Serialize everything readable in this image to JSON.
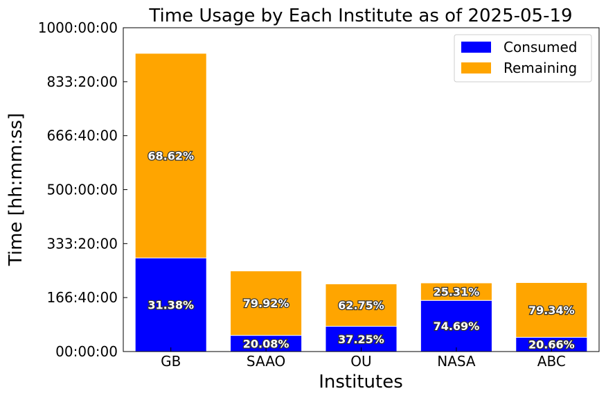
{
  "chart_data": {
    "type": "bar",
    "stacked": true,
    "title": "Time Usage by Each Institute as of 2025-05-19",
    "xlabel": "Institutes",
    "ylabel": "Time [hh:mm:ss]",
    "ylim": [
      0,
      1000
    ],
    "y_unit": "hours",
    "yticks": [
      0,
      166.6667,
      333.3333,
      500,
      666.6667,
      833.3333,
      1000
    ],
    "ytick_labels": [
      "00:00:00",
      "166:40:00",
      "333:20:00",
      "500:00:00",
      "666:40:00",
      "833:20:00",
      "1000:00:00"
    ],
    "categories": [
      "GB",
      "SAAO",
      "OU",
      "NASA",
      "ABC"
    ],
    "series": [
      {
        "name": "Consumed",
        "color": "#0000ff",
        "values": [
          289,
          50,
          78,
          158,
          44
        ],
        "labels": [
          "31.38%",
          "20.08%",
          "37.25%",
          "74.69%",
          "20.66%"
        ]
      },
      {
        "name": "Remaining",
        "color": "#ffa500",
        "values": [
          632,
          199,
          131,
          54,
          169
        ],
        "labels": [
          "68.62%",
          "79.92%",
          "62.75%",
          "25.31%",
          "79.34%"
        ]
      }
    ],
    "legend": {
      "placement": "top-right"
    },
    "grid": false
  }
}
